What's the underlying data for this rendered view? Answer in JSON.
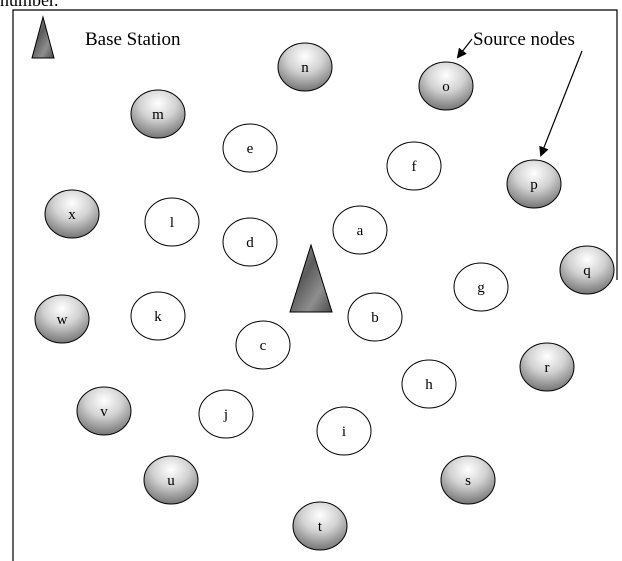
{
  "top_cut_text": "number.",
  "legend": {
    "base_station_label": "Base Station",
    "source_nodes_label": "Source nodes"
  },
  "nodes": [
    {
      "id": "a",
      "type": "sensor"
    },
    {
      "id": "b",
      "type": "sensor"
    },
    {
      "id": "c",
      "type": "sensor"
    },
    {
      "id": "d",
      "type": "sensor"
    },
    {
      "id": "e",
      "type": "sensor"
    },
    {
      "id": "f",
      "type": "sensor"
    },
    {
      "id": "g",
      "type": "sensor"
    },
    {
      "id": "h",
      "type": "sensor"
    },
    {
      "id": "i",
      "type": "sensor"
    },
    {
      "id": "j",
      "type": "sensor"
    },
    {
      "id": "k",
      "type": "sensor"
    },
    {
      "id": "l",
      "type": "sensor"
    },
    {
      "id": "m",
      "type": "source"
    },
    {
      "id": "n",
      "type": "source"
    },
    {
      "id": "o",
      "type": "source"
    },
    {
      "id": "p",
      "type": "source"
    },
    {
      "id": "q",
      "type": "source"
    },
    {
      "id": "r",
      "type": "source"
    },
    {
      "id": "s",
      "type": "source"
    },
    {
      "id": "t",
      "type": "source"
    },
    {
      "id": "u",
      "type": "source"
    },
    {
      "id": "v",
      "type": "source"
    },
    {
      "id": "w",
      "type": "source"
    },
    {
      "id": "x",
      "type": "source"
    }
  ],
  "colors": {
    "sensor_fill": "#ffffff",
    "source_gradient_light": "#ffffff",
    "source_gradient_dark": "#7a7a7a",
    "stroke": "#000000"
  }
}
